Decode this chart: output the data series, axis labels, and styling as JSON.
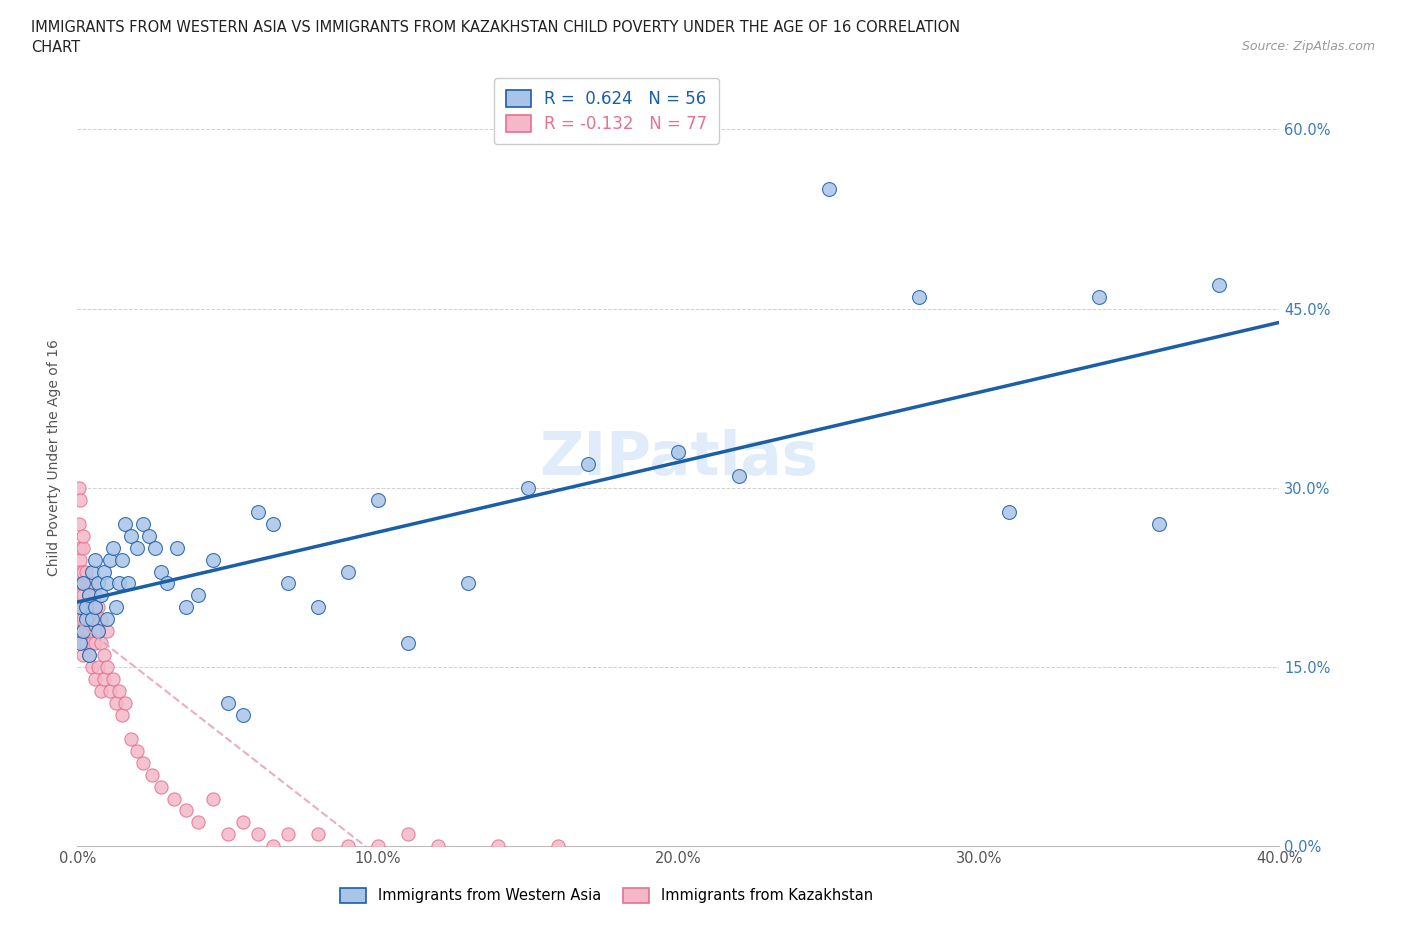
{
  "title_line1": "IMMIGRANTS FROM WESTERN ASIA VS IMMIGRANTS FROM KAZAKHSTAN CHILD POVERTY UNDER THE AGE OF 16 CORRELATION",
  "title_line2": "CHART",
  "source": "Source: ZipAtlas.com",
  "ylabel": "Child Poverty Under the Age of 16",
  "western_asia_x": [
    0.001,
    0.001,
    0.002,
    0.002,
    0.003,
    0.003,
    0.004,
    0.004,
    0.005,
    0.005,
    0.006,
    0.006,
    0.007,
    0.007,
    0.008,
    0.009,
    0.01,
    0.01,
    0.011,
    0.012,
    0.013,
    0.014,
    0.015,
    0.016,
    0.017,
    0.018,
    0.02,
    0.022,
    0.024,
    0.026,
    0.028,
    0.03,
    0.033,
    0.036,
    0.04,
    0.045,
    0.05,
    0.055,
    0.06,
    0.065,
    0.07,
    0.08,
    0.09,
    0.1,
    0.11,
    0.13,
    0.15,
    0.17,
    0.2,
    0.22,
    0.25,
    0.28,
    0.31,
    0.34,
    0.36,
    0.38
  ],
  "western_asia_y": [
    0.17,
    0.2,
    0.18,
    0.22,
    0.19,
    0.2,
    0.16,
    0.21,
    0.19,
    0.23,
    0.2,
    0.24,
    0.18,
    0.22,
    0.21,
    0.23,
    0.19,
    0.22,
    0.24,
    0.25,
    0.2,
    0.22,
    0.24,
    0.27,
    0.22,
    0.26,
    0.25,
    0.27,
    0.26,
    0.25,
    0.23,
    0.22,
    0.25,
    0.2,
    0.21,
    0.24,
    0.12,
    0.11,
    0.28,
    0.27,
    0.22,
    0.2,
    0.23,
    0.29,
    0.17,
    0.22,
    0.3,
    0.32,
    0.33,
    0.31,
    0.55,
    0.46,
    0.28,
    0.46,
    0.27,
    0.47
  ],
  "kazakhstan_x": [
    0.0005,
    0.0005,
    0.001,
    0.001,
    0.001,
    0.001,
    0.001,
    0.001,
    0.001,
    0.001,
    0.001,
    0.001,
    0.002,
    0.002,
    0.002,
    0.002,
    0.002,
    0.002,
    0.002,
    0.002,
    0.002,
    0.003,
    0.003,
    0.003,
    0.003,
    0.003,
    0.003,
    0.004,
    0.004,
    0.004,
    0.004,
    0.004,
    0.005,
    0.005,
    0.005,
    0.005,
    0.006,
    0.006,
    0.006,
    0.006,
    0.007,
    0.007,
    0.007,
    0.008,
    0.008,
    0.008,
    0.009,
    0.009,
    0.01,
    0.01,
    0.011,
    0.012,
    0.013,
    0.014,
    0.015,
    0.016,
    0.018,
    0.02,
    0.022,
    0.025,
    0.028,
    0.032,
    0.036,
    0.04,
    0.045,
    0.05,
    0.055,
    0.06,
    0.065,
    0.07,
    0.08,
    0.09,
    0.1,
    0.11,
    0.12,
    0.14,
    0.16
  ],
  "kazakhstan_y": [
    0.3,
    0.27,
    0.29,
    0.25,
    0.22,
    0.24,
    0.2,
    0.22,
    0.18,
    0.23,
    0.19,
    0.21,
    0.25,
    0.22,
    0.2,
    0.26,
    0.23,
    0.17,
    0.19,
    0.16,
    0.21,
    0.22,
    0.19,
    0.17,
    0.23,
    0.2,
    0.18,
    0.21,
    0.18,
    0.22,
    0.16,
    0.19,
    0.2,
    0.17,
    0.22,
    0.15,
    0.19,
    0.17,
    0.21,
    0.14,
    0.18,
    0.15,
    0.2,
    0.17,
    0.13,
    0.19,
    0.16,
    0.14,
    0.18,
    0.15,
    0.13,
    0.14,
    0.12,
    0.13,
    0.11,
    0.12,
    0.09,
    0.08,
    0.07,
    0.06,
    0.05,
    0.04,
    0.03,
    0.02,
    0.04,
    0.01,
    0.02,
    0.01,
    0.0,
    0.01,
    0.01,
    0.0,
    0.0,
    0.01,
    0.0,
    0.0,
    0.0
  ],
  "western_asia_fill": "#aac4e8",
  "western_asia_edge": "#1a5fa8",
  "kazakhstan_fill": "#f4b8c8",
  "kazakhstan_edge": "#e87090",
  "wa_line_color": "#1a5fa8",
  "kz_line_color": "#e8a0b4",
  "R_western": 0.624,
  "N_western": 56,
  "R_kazakhstan": -0.132,
  "N_kazakhstan": 77,
  "xlim": [
    0.0,
    0.4
  ],
  "ylim": [
    0.0,
    0.65
  ],
  "yticks": [
    0.0,
    0.15,
    0.3,
    0.45,
    0.6
  ],
  "ytick_labels": [
    "0.0%",
    "15.0%",
    "30.0%",
    "45.0%",
    "60.0%"
  ],
  "xticks": [
    0.0,
    0.1,
    0.2,
    0.3,
    0.4
  ],
  "xtick_labels": [
    "0.0%",
    "10.0%",
    "20.0%",
    "30.0%",
    "40.0%"
  ],
  "watermark": "ZIPatlas",
  "background_color": "#ffffff",
  "grid_color": "#d0d0d0"
}
